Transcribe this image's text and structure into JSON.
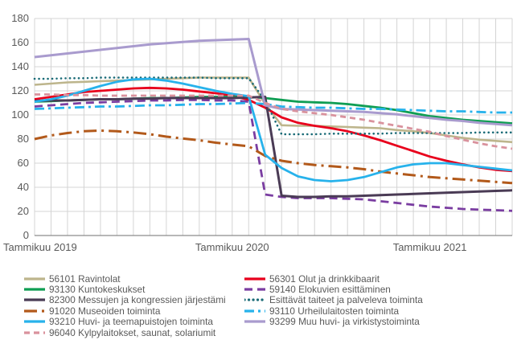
{
  "chart_data": {
    "type": "line",
    "title": "",
    "grid": true,
    "legend_position": "bottom",
    "x_axis": {
      "unit": "month",
      "n_points": 30,
      "range": [
        "2019-01",
        "2021-06"
      ],
      "tick_labels": [
        {
          "index": 0,
          "label": "Tammikuu 2019"
        },
        {
          "index": 12,
          "label": "Tammikuu 2020"
        },
        {
          "index": 24,
          "label": "Tammikuu 2021"
        }
      ]
    },
    "y_axis": {
      "min": 0,
      "max": 180,
      "step": 20,
      "tick_labels": [
        "0",
        "20",
        "40",
        "60",
        "80",
        "100",
        "120",
        "140",
        "160",
        "180"
      ]
    },
    "series": [
      {
        "id": "56101",
        "label": "56101 Ravintolat",
        "color": "#bdb58c",
        "dash": null,
        "width": 2.6,
        "values": [
          125,
          126,
          127,
          127.5,
          128,
          128.5,
          129,
          129.5,
          130,
          130.5,
          131,
          131,
          131,
          131,
          109,
          91.5,
          91,
          91,
          90.5,
          90,
          89.5,
          89,
          87.5,
          86.5,
          85,
          83,
          81,
          79.5,
          78.5,
          77.5
        ]
      },
      {
        "id": "56301",
        "label": "56301 Olut ja drinkkibaarit",
        "color": "#e8001c",
        "dash": null,
        "width": 2.8,
        "values": [
          113,
          115,
          117,
          119,
          120,
          121,
          122,
          122.5,
          122,
          121,
          119.5,
          118,
          116,
          112.5,
          106,
          98,
          93.5,
          91,
          89,
          86.5,
          83,
          79,
          74.5,
          70,
          65.5,
          62,
          59,
          56.5,
          54.5,
          53.5
        ]
      },
      {
        "id": "93130",
        "label": "93130 Kuntokeskukset",
        "color": "#0f9e53",
        "dash": null,
        "width": 2.8,
        "values": [
          111,
          111.5,
          112,
          112.5,
          113,
          113,
          113.5,
          114,
          114,
          114.5,
          115,
          115,
          115,
          115,
          114,
          112.5,
          111,
          110.5,
          110,
          109,
          107.5,
          106,
          104,
          101.5,
          99,
          97.5,
          96,
          95,
          94,
          93
        ]
      },
      {
        "id": "59140",
        "label": "59140 Elokuvien esittäminen",
        "color": "#7a3da1",
        "dash": "10 6",
        "width": 2.8,
        "values": [
          107,
          108,
          109,
          110,
          110.5,
          111,
          111.5,
          112,
          112,
          112.5,
          112.5,
          112,
          112,
          111,
          34,
          32,
          31,
          31,
          31,
          30.5,
          30,
          28.5,
          27,
          25.5,
          24,
          23,
          22,
          21.5,
          21,
          20.5
        ]
      },
      {
        "id": "82300",
        "label": "82300 Messujen ja kongressien järjestämi",
        "color": "#4a3b55",
        "dash": null,
        "width": 3,
        "values": [
          111.5,
          112,
          112,
          112.5,
          113,
          113,
          113.5,
          113.5,
          114,
          114,
          114,
          114,
          114,
          114.5,
          115,
          33,
          32,
          32,
          32.5,
          32.5,
          33,
          33.5,
          34,
          34.5,
          35,
          35.5,
          36,
          36.5,
          37,
          37.5
        ]
      },
      {
        "id": "esittavat",
        "label": "Esittävät taiteet ja palveleva toiminta",
        "color": "#1a6b77",
        "dash": "0.1 5.4",
        "cap": "round",
        "width": 2.6,
        "values": [
          130,
          130,
          130.5,
          130.5,
          131,
          131,
          131,
          131,
          131,
          131,
          131,
          130.5,
          130.5,
          130.5,
          112,
          84,
          84,
          84,
          84.5,
          84.5,
          84.5,
          84.5,
          85,
          85,
          85,
          85,
          85,
          85.5,
          85.5,
          85.5
        ]
      },
      {
        "id": "91020",
        "label": "91020 Museoiden toiminta",
        "color": "#b2591a",
        "dash": "16 6 3 6",
        "width": 3,
        "values": [
          80,
          83,
          85,
          86.5,
          87,
          86.5,
          85.5,
          84,
          82,
          80.5,
          79,
          77,
          75.5,
          74,
          66,
          62,
          60,
          58.5,
          57.5,
          56.5,
          55,
          53,
          51.5,
          50,
          48.5,
          47.5,
          46.5,
          45.5,
          44.5,
          43.5
        ]
      },
      {
        "id": "93110",
        "label": "93110 Urheilulaitosten toiminta",
        "color": "#27b2eb",
        "dash": "12 5 3 5",
        "width": 2.8,
        "values": [
          105,
          105.5,
          106,
          106.5,
          107,
          107,
          107.5,
          108,
          108,
          108.5,
          109,
          109,
          109.5,
          110,
          109,
          107,
          106.5,
          106,
          106,
          105.5,
          105,
          105,
          104.5,
          104,
          103.5,
          103,
          103,
          102.5,
          102,
          102
        ]
      },
      {
        "id": "93210",
        "label": "93210 Huvi- ja teemapuistojen toiminta",
        "color": "#27b2eb",
        "dash": null,
        "width": 2.8,
        "values": [
          111,
          113,
          116,
          120,
          124,
          127.5,
          129.5,
          130,
          128.5,
          126,
          123,
          120,
          117.5,
          115.5,
          67,
          56,
          49,
          46,
          45,
          46,
          48.5,
          52.5,
          56.5,
          59,
          60,
          60,
          58.5,
          57,
          55.5,
          54
        ]
      },
      {
        "id": "93299",
        "label": "93299 Muu huvi- ja virkistystoiminta",
        "color": "#a99bce",
        "dash": null,
        "width": 3,
        "values": [
          148,
          149.5,
          151,
          152.5,
          154,
          155.5,
          157,
          158.5,
          159.5,
          160.5,
          161.5,
          162,
          162.5,
          163,
          108,
          105,
          104.5,
          104,
          103.5,
          103,
          102.5,
          101.5,
          100.5,
          99,
          97.5,
          96,
          95,
          93.5,
          92.5,
          91.5
        ]
      },
      {
        "id": "96040",
        "label": "96040 Kylpylaitokset, saunat, solariumit",
        "color": "#d9929d",
        "dash": "7 5",
        "width": 2.8,
        "values": [
          117,
          117,
          116.5,
          116.5,
          116,
          116,
          116,
          116,
          116,
          116,
          116,
          116,
          116,
          116,
          110,
          105,
          103,
          101.5,
          100,
          98,
          96,
          93.5,
          91,
          88.5,
          86,
          82.5,
          79.5,
          76.5,
          74,
          72
        ]
      }
    ]
  },
  "legend": {
    "columns": {
      "left": [
        "56101",
        "93130",
        "82300",
        "91020",
        "93210",
        "96040"
      ],
      "right": [
        "56301",
        "59140",
        "esittavat",
        "93110",
        "93299"
      ]
    }
  },
  "colors": {
    "grid": "#d4d4d4",
    "axis": "#8c8c8c",
    "text": "#595959",
    "background": "#ffffff"
  }
}
